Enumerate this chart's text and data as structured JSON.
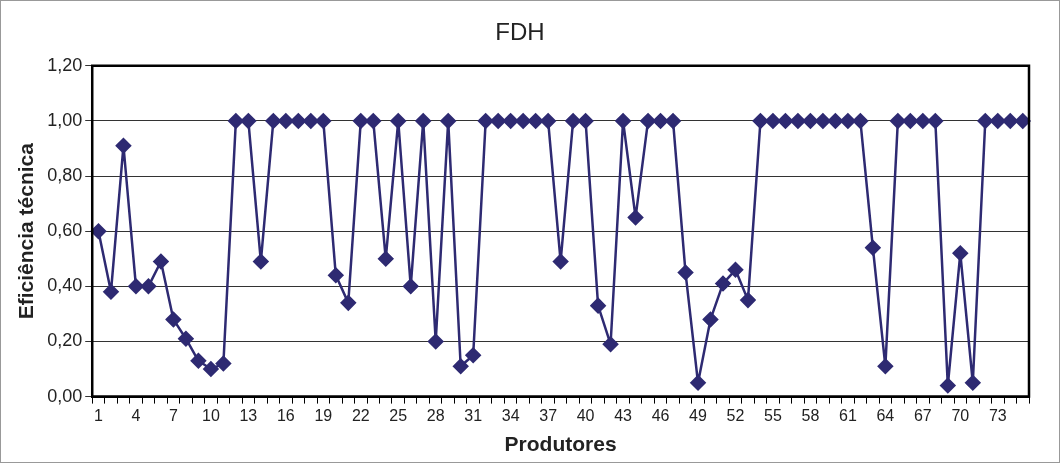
{
  "chart_data": {
    "type": "line",
    "title": "FDH",
    "xlabel": "Produtores",
    "ylabel": "Eficiência técnica",
    "categories": [
      "1",
      null,
      null,
      "4",
      null,
      null,
      "7",
      null,
      null,
      "10",
      null,
      null,
      "13",
      null,
      null,
      "16",
      null,
      null,
      "19",
      null,
      null,
      "22",
      null,
      null,
      "25",
      null,
      null,
      "28",
      null,
      null,
      "31",
      null,
      null,
      "34",
      null,
      null,
      "37",
      null,
      null,
      "40",
      null,
      null,
      "43",
      null,
      null,
      "46",
      null,
      null,
      "49",
      null,
      null,
      "52",
      null,
      null,
      "55",
      null,
      null,
      "58",
      null,
      null,
      "61",
      null,
      null,
      "64",
      null,
      null,
      "67",
      null,
      null,
      "70",
      null,
      null,
      "73",
      null,
      null
    ],
    "series": [
      {
        "color": "#2e2a72",
        "values": [
          0.6,
          0.38,
          0.91,
          0.4,
          0.4,
          0.49,
          0.28,
          0.21,
          0.13,
          0.1,
          0.12,
          1,
          1,
          0.49,
          1,
          1,
          1,
          1,
          1,
          0.44,
          0.34,
          1,
          1,
          0.5,
          1,
          0.4,
          1,
          0.2,
          1,
          0.11,
          0.15,
          1,
          1,
          1,
          1,
          1,
          1,
          0.49,
          1,
          1,
          0.33,
          0.19,
          1,
          0.65,
          1,
          1,
          1,
          0.45,
          0.05,
          0.28,
          0.41,
          0.46,
          0.35,
          1,
          1,
          1,
          1,
          1,
          1,
          1,
          1,
          1,
          0.54,
          0.11,
          1,
          1,
          1,
          1,
          0.04,
          0.52,
          0.05,
          1,
          1,
          1,
          1
        ]
      }
    ],
    "ylim": [
      0,
      1.2
    ],
    "yticks": [
      {
        "value": 0,
        "label": "0,00"
      },
      {
        "value": 0.2,
        "label": "0,20"
      },
      {
        "value": 0.4,
        "label": "0,40"
      },
      {
        "value": 0.6,
        "label": "0,60"
      },
      {
        "value": 0.8,
        "label": "0,80"
      },
      {
        "value": 1,
        "label": "1,00"
      },
      {
        "value": 1.2,
        "label": "1,20"
      }
    ],
    "grid": "y",
    "legend": false,
    "marker": "diamond",
    "line_style": "solid"
  }
}
